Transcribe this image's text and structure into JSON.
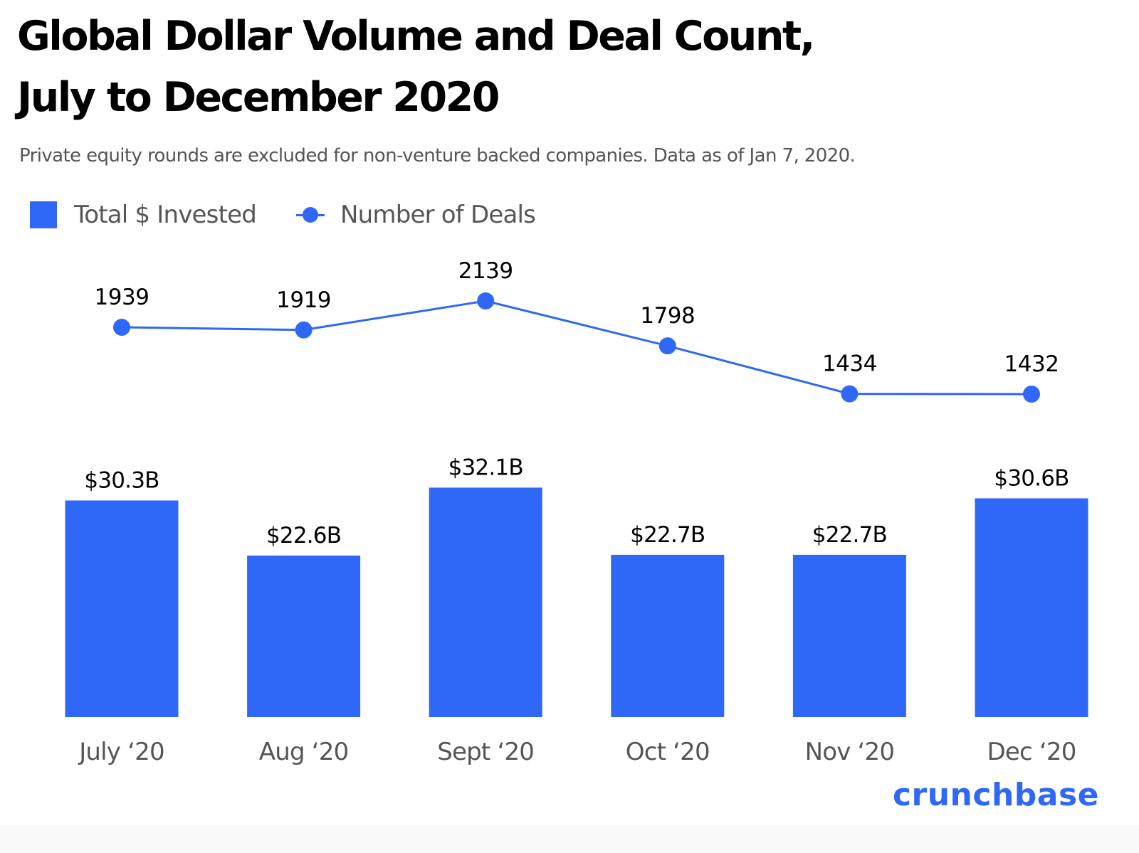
{
  "header": {
    "title_line1": "Global Dollar Volume and Deal Count,",
    "title_line2": "July to December 2020",
    "subtitle": "Private equity rounds are excluded for non-venture backed companies. Data as of Jan 7, 2020."
  },
  "legend": {
    "bar_label": "Total $ Invested",
    "line_label": "Number of Deals"
  },
  "brand": "crunchbase",
  "colors": {
    "accent": "#2f67f6",
    "text": "#000000",
    "muted": "#555555"
  },
  "chart_data": {
    "type": "bar",
    "title": "Global Dollar Volume and Deal Count, July to December 2020",
    "subtitle": "Private equity rounds are excluded for non-venture backed companies. Data as of Jan 7, 2020.",
    "categories": [
      "July ‘20",
      "Aug ‘20",
      "Sept ‘20",
      "Oct ‘20",
      "Nov ‘20",
      "Dec ‘20"
    ],
    "series": [
      {
        "name": "Total $ Invested",
        "type": "bar",
        "unit": "USD billions",
        "values": [
          30.3,
          22.6,
          32.1,
          22.7,
          22.7,
          30.6
        ],
        "labels": [
          "$30.3B",
          "$22.6B",
          "$32.1B",
          "$22.7B",
          "$22.7B",
          "$30.6B"
        ]
      },
      {
        "name": "Number of Deals",
        "type": "line",
        "values": [
          1939,
          1919,
          2139,
          1798,
          1434,
          1432
        ],
        "labels": [
          "1939",
          "1919",
          "2139",
          "1798",
          "1434",
          "1432"
        ]
      }
    ],
    "xlabel": "",
    "ylabel": "",
    "grid": false,
    "legend_position": "top-left"
  }
}
